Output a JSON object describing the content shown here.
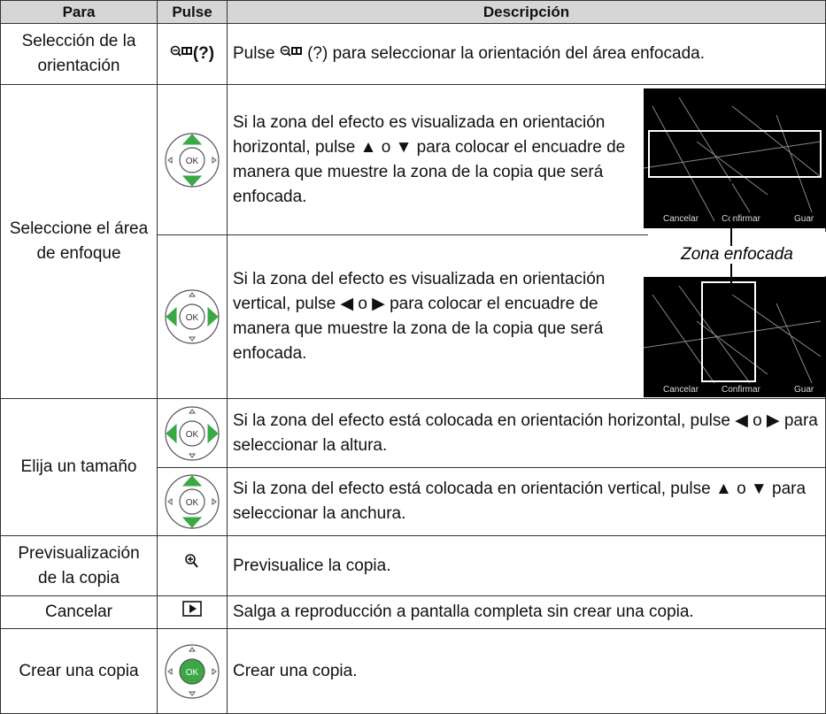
{
  "table": {
    "headers": [
      "Para",
      "Pulse",
      "Descripción"
    ],
    "rows": [
      {
        "para": "Selección de la orientación",
        "pulse": "(?)",
        "description": [
          "Pulse",
          "(?) para seleccionar la orientación del área enfocada."
        ]
      },
      {
        "para": "Seleccione el área de enfoque",
        "items": [
          "Si la zona del efecto es visualizada en orientación horizontal, pulse ▲ o ▼ para colocar el encuadre de manera que muestre la zona de la copia que será enfocada.",
          "Si la zona del efecto es visualizada en orientación vertical, pulse ◀ o ▶ para colocar el encuadre de manera que muestre la zona de la copia que será enfocada."
        ]
      },
      {
        "para": "Elija un tamaño",
        "items": [
          "Si la zona del efecto está colocada en orientación horizontal, pulse ◀ o ▶ para seleccionar la altura.",
          "Si la zona del efecto está colocada en orientación vertical, pulse ▲ o ▼ para seleccionar la anchura."
        ]
      },
      {
        "para": "Previsualización de la copia",
        "description": "Previsualice la copia."
      },
      {
        "para": "Cancelar",
        "description": "Salga a reproducción a pantalla completa sin crear una copia."
      },
      {
        "para": "Crear una copia",
        "description": "Crear una copia."
      }
    ]
  },
  "figure": {
    "callout": "Zona enfocada",
    "screen_labels": [
      "Cancelar",
      "Confirmar",
      "Guar"
    ],
    "button": "OK"
  }
}
